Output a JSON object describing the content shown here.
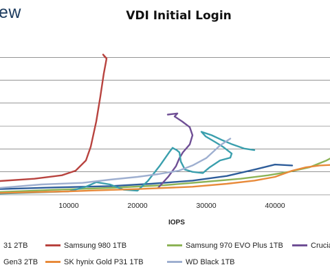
{
  "brand": "ew",
  "chart_data": {
    "type": "line",
    "title": "VDI Initial Login",
    "xlabel": "IOPS",
    "ylabel": "",
    "xlim": [
      0,
      48000
    ],
    "ylim": [
      0,
      7.3
    ],
    "x_ticks": [
      "10000",
      "20000",
      "30000",
      "40000"
    ],
    "x_tick_values": [
      10000,
      20000,
      30000,
      40000
    ],
    "y_gridlines": [
      1,
      2,
      3,
      4,
      5,
      6
    ],
    "grid": true,
    "legend_position": "bottom",
    "series": [
      {
        "name": "31 2TB",
        "color": "#2e5d9a",
        "points": [
          [
            0,
            0.25
          ],
          [
            8000,
            0.32
          ],
          [
            16000,
            0.38
          ],
          [
            22000,
            0.48
          ],
          [
            28000,
            0.62
          ],
          [
            33000,
            0.82
          ],
          [
            37000,
            1.1
          ],
          [
            40000,
            1.32
          ],
          [
            42500,
            1.28
          ]
        ]
      },
      {
        "name": "Samsung 980 1TB",
        "color": "#b8433f",
        "points": [
          [
            0,
            0.6
          ],
          [
            5000,
            0.7
          ],
          [
            9000,
            0.85
          ],
          [
            11000,
            1.05
          ],
          [
            12500,
            1.5
          ],
          [
            13200,
            2.1
          ],
          [
            14000,
            3.2
          ],
          [
            14600,
            4.3
          ],
          [
            15100,
            5.3
          ],
          [
            15400,
            5.78
          ],
          [
            15500,
            5.95
          ],
          [
            15200,
            6.05
          ],
          [
            15000,
            6.12
          ],
          [
            15300,
            6.0
          ]
        ]
      },
      {
        "name": "Samsung 970 EVO Plus 1TB",
        "color": "#8cb356",
        "points": [
          [
            0,
            0.12
          ],
          [
            8000,
            0.22
          ],
          [
            16000,
            0.3
          ],
          [
            24000,
            0.42
          ],
          [
            30000,
            0.57
          ],
          [
            35000,
            0.7
          ],
          [
            39000,
            0.85
          ],
          [
            42000,
            1.0
          ],
          [
            45000,
            1.2
          ],
          [
            47500,
            1.5
          ],
          [
            48000,
            1.58
          ]
        ]
      },
      {
        "name": "Crucia",
        "color": "#6f4f95",
        "points": [
          [
            23000,
            0.3
          ],
          [
            24500,
            0.8
          ],
          [
            25600,
            1.25
          ],
          [
            26100,
            1.6
          ],
          [
            26600,
            1.85
          ],
          [
            27600,
            2.2
          ],
          [
            28000,
            2.6
          ],
          [
            27600,
            2.95
          ],
          [
            26500,
            3.2
          ],
          [
            25400,
            3.42
          ],
          [
            25800,
            3.55
          ],
          [
            24400,
            3.5
          ]
        ]
      },
      {
        "name": "Gen3 2TB",
        "color": "#3a9fad",
        "points": [
          [
            0,
            0.05
          ],
          [
            10000,
            0.15
          ],
          [
            12500,
            0.35
          ],
          [
            14000,
            0.55
          ],
          [
            16000,
            0.45
          ],
          [
            18000,
            0.22
          ],
          [
            20000,
            0.18
          ],
          [
            21500,
            0.6
          ],
          [
            23200,
            1.25
          ],
          [
            24600,
            1.85
          ],
          [
            25100,
            2.05
          ],
          [
            25700,
            1.95
          ],
          [
            26100,
            1.85
          ],
          [
            26300,
            1.45
          ],
          [
            26900,
            1.1
          ],
          [
            28000,
            1.0
          ],
          [
            29500,
            0.95
          ],
          [
            30500,
            1.2
          ],
          [
            32000,
            1.5
          ],
          [
            33500,
            1.62
          ],
          [
            33700,
            1.8
          ],
          [
            32400,
            2.1
          ],
          [
            31300,
            2.3
          ],
          [
            29900,
            2.55
          ],
          [
            29300,
            2.75
          ],
          [
            30800,
            2.6
          ],
          [
            32200,
            2.4
          ],
          [
            33800,
            2.2
          ],
          [
            35500,
            2.02
          ],
          [
            37000,
            1.95
          ]
        ]
      },
      {
        "name": "SK hynix Gold P31 1TB",
        "color": "#e88a3a",
        "points": [
          [
            0,
            0.08
          ],
          [
            10000,
            0.15
          ],
          [
            20000,
            0.25
          ],
          [
            28000,
            0.35
          ],
          [
            33000,
            0.48
          ],
          [
            37000,
            0.62
          ],
          [
            40000,
            0.78
          ],
          [
            42500,
            1.05
          ],
          [
            44500,
            1.2
          ],
          [
            46500,
            1.28
          ],
          [
            48000,
            1.3
          ]
        ]
      },
      {
        "name": "WD Black 1TB",
        "color": "#9eafd0",
        "points": [
          [
            0,
            0.3
          ],
          [
            6000,
            0.45
          ],
          [
            12000,
            0.52
          ],
          [
            16000,
            0.66
          ],
          [
            20000,
            0.78
          ],
          [
            23000,
            0.9
          ],
          [
            26000,
            1.05
          ],
          [
            28000,
            1.28
          ],
          [
            30000,
            1.6
          ],
          [
            32000,
            2.15
          ],
          [
            33500,
            2.45
          ]
        ]
      }
    ]
  }
}
